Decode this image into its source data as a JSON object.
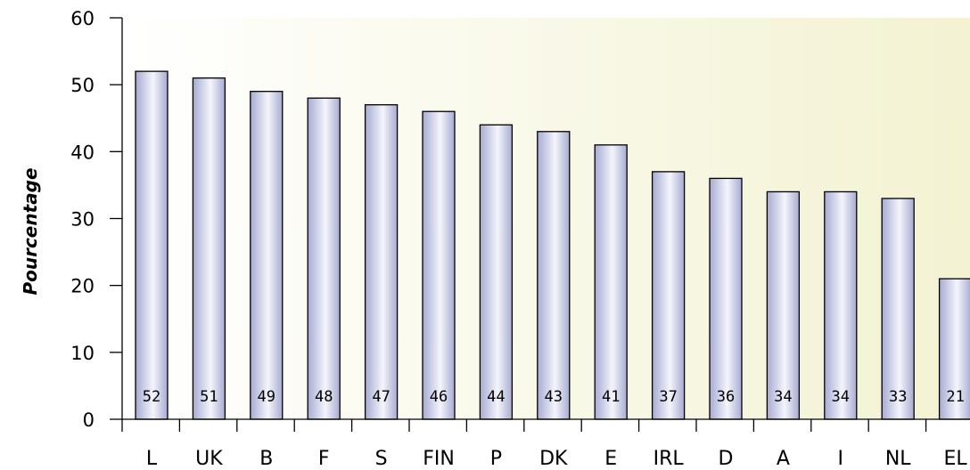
{
  "chart_data": {
    "type": "bar",
    "categories": [
      "L",
      "UK",
      "B",
      "F",
      "S",
      "FIN",
      "P",
      "DK",
      "E",
      "IRL",
      "D",
      "A",
      "I",
      "NL",
      "EL"
    ],
    "values": [
      52,
      51,
      49,
      48,
      47,
      46,
      44,
      43,
      41,
      37,
      36,
      34,
      34,
      33,
      21
    ],
    "title": "",
    "xlabel": "",
    "ylabel": "Pourcentage",
    "ylim": [
      0,
      60
    ],
    "yticks": [
      0,
      10,
      20,
      30,
      40,
      50,
      60
    ],
    "grid": false,
    "data_labels": true,
    "colors": {
      "bar_fill_dark": "#a7abd2",
      "bar_fill_light": "#f4f5fb",
      "bar_stroke": "#000000",
      "plot_bg_left": "#ffffff",
      "plot_bg_right": "#f3f2d2"
    }
  }
}
